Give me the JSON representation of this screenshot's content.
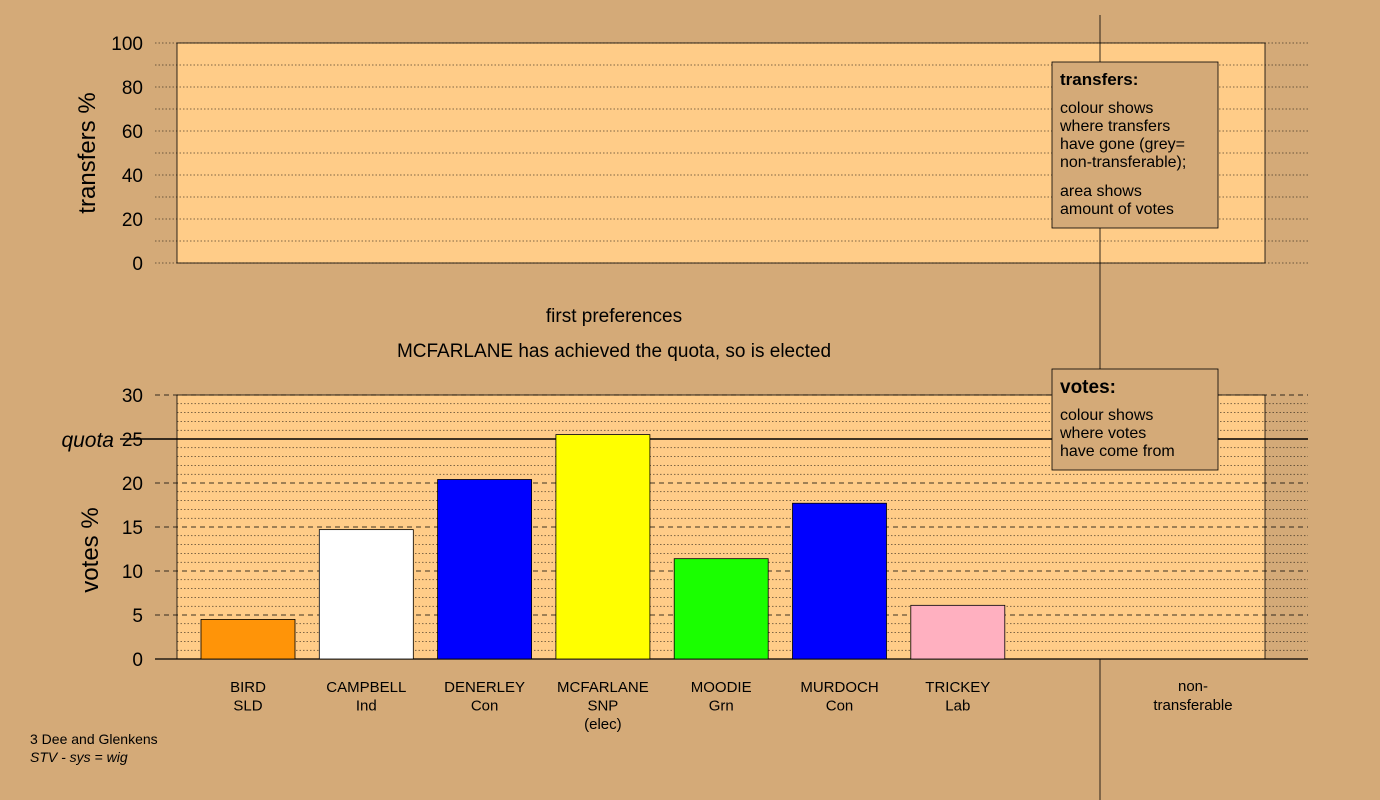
{
  "chart_data": [
    {
      "type": "bar",
      "ylabel": "transfers %",
      "ylim": [
        0,
        100
      ],
      "yticks": [
        0,
        20,
        40,
        60,
        80,
        100
      ],
      "series": [],
      "legend": {
        "title": "transfers:",
        "lines1": [
          "colour shows",
          "where transfers",
          "have gone (grey=",
          "non-transferable);"
        ],
        "lines2": [
          "area shows",
          "amount of votes"
        ]
      }
    },
    {
      "type": "bar",
      "title": "first preferences",
      "subtitle": "MCFARLANE has achieved the quota, so is elected",
      "ylabel": "votes %",
      "ylim": [
        0,
        30
      ],
      "yticks": [
        0,
        5,
        10,
        15,
        20,
        25,
        30
      ],
      "quota": 25,
      "quota_label": "quota",
      "categories": [
        {
          "name": "BIRD",
          "party": "SLD",
          "extra": "",
          "value": 4.5,
          "color": "#ff9408"
        },
        {
          "name": "CAMPBELL",
          "party": "Ind",
          "extra": "",
          "value": 14.7,
          "color": "#ffffff"
        },
        {
          "name": "DENERLEY",
          "party": "Con",
          "extra": "",
          "value": 20.4,
          "color": "#0000ff"
        },
        {
          "name": "MCFARLANE",
          "party": "SNP",
          "extra": "(elec)",
          "value": 25.5,
          "color": "#ffff00"
        },
        {
          "name": "MOODIE",
          "party": "Grn",
          "extra": "",
          "value": 11.4,
          "color": "#1aff00"
        },
        {
          "name": "MURDOCH",
          "party": "Con",
          "extra": "",
          "value": 17.7,
          "color": "#0000ff"
        },
        {
          "name": "TRICKEY",
          "party": "Lab",
          "extra": "",
          "value": 6.1,
          "color": "#ffb0c0"
        }
      ],
      "non_transferable": {
        "line1": "non-",
        "line2": "transferable"
      },
      "legend": {
        "title": "votes:",
        "lines": [
          "colour shows",
          "where votes",
          "have come from"
        ]
      }
    }
  ],
  "footer": {
    "line1": "3 Dee and Glenkens",
    "line2": "STV - sys = wig"
  },
  "colors": {
    "background": "#d4aa78",
    "plot": "#ffcc88"
  }
}
